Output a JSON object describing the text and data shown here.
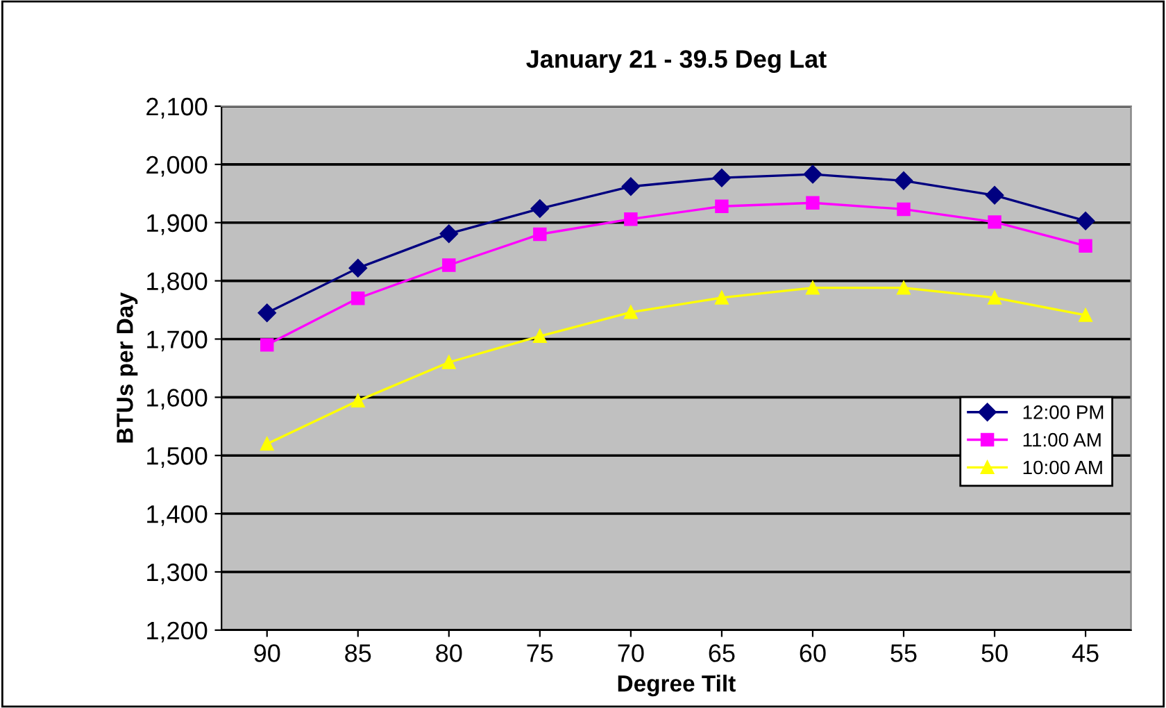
{
  "chart_data": {
    "type": "line",
    "title": "January 21 - 39.5 Deg Lat",
    "xlabel": "Degree Tilt",
    "ylabel": "BTUs per Day",
    "categories": [
      "90",
      "85",
      "80",
      "75",
      "70",
      "65",
      "60",
      "55",
      "50",
      "45"
    ],
    "series": [
      {
        "name": "12:00 PM",
        "color": "#000080",
        "marker": "diamond",
        "values": [
          1745,
          1822,
          1881,
          1924,
          1962,
          1977,
          1983,
          1972,
          1947,
          1903
        ]
      },
      {
        "name": "11:00 AM",
        "color": "#ff00ff",
        "marker": "square",
        "values": [
          1690,
          1770,
          1827,
          1880,
          1906,
          1928,
          1934,
          1923,
          1901,
          1860
        ]
      },
      {
        "name": "10:00 AM",
        "color": "#ffff00",
        "marker": "triangle",
        "values": [
          1520,
          1594,
          1660,
          1705,
          1746,
          1771,
          1788,
          1788,
          1771,
          1741
        ]
      }
    ],
    "ylim": [
      1200,
      2100
    ],
    "yticks": [
      {
        "value": 1200,
        "label": "1,200"
      },
      {
        "value": 1300,
        "label": "1,300"
      },
      {
        "value": 1400,
        "label": "1,400"
      },
      {
        "value": 1500,
        "label": "1,500"
      },
      {
        "value": 1600,
        "label": "1,600"
      },
      {
        "value": 1700,
        "label": "1,700"
      },
      {
        "value": 1800,
        "label": "1,800"
      },
      {
        "value": 1900,
        "label": "1,900"
      },
      {
        "value": 2000,
        "label": "2,000"
      },
      {
        "value": 2100,
        "label": "2,100"
      }
    ],
    "grid": "y",
    "legend": "right",
    "line_style": "solid"
  }
}
